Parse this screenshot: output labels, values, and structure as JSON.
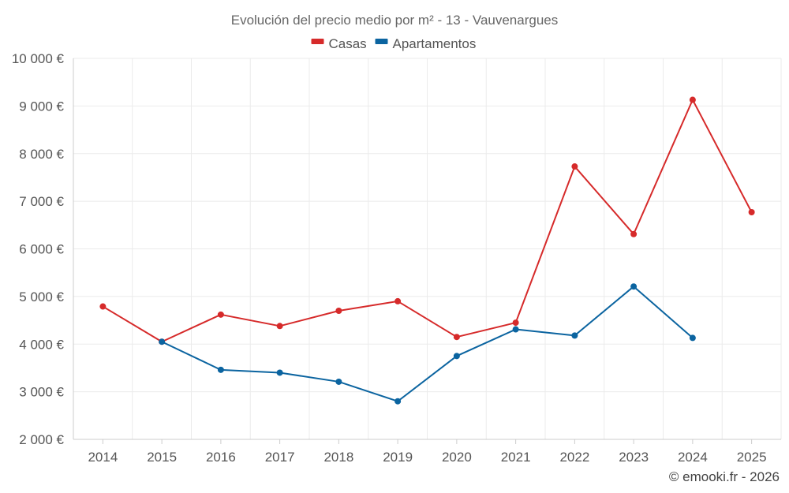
{
  "chart_data": {
    "type": "line",
    "title": "Evolución del precio medio por m² - 13 - Vauvenargues",
    "categories": [
      "2014",
      "2015",
      "2016",
      "2017",
      "2018",
      "2019",
      "2020",
      "2021",
      "2022",
      "2023",
      "2024",
      "2025"
    ],
    "ylim": [
      2000,
      10000
    ],
    "yticks": [
      2000,
      3000,
      4000,
      5000,
      6000,
      7000,
      8000,
      9000,
      10000
    ],
    "ytick_labels": [
      "2 000 €",
      "3 000 €",
      "4 000 €",
      "5 000 €",
      "6 000 €",
      "7 000 €",
      "8 000 €",
      "9 000 €",
      "10 000 €"
    ],
    "grid": true,
    "legend_position": "top-center",
    "series": [
      {
        "name": "Casas",
        "color": "#d62a2a",
        "values": [
          4790,
          4050,
          4620,
          4380,
          4700,
          4900,
          4150,
          4450,
          7730,
          6310,
          9130,
          6770
        ]
      },
      {
        "name": "Apartamentos",
        "color": "#0b64a0",
        "values": [
          null,
          4050,
          3460,
          3400,
          3210,
          2800,
          3750,
          4310,
          4180,
          5210,
          4130,
          null
        ]
      }
    ]
  },
  "credit": "© emooki.fr - 2026"
}
